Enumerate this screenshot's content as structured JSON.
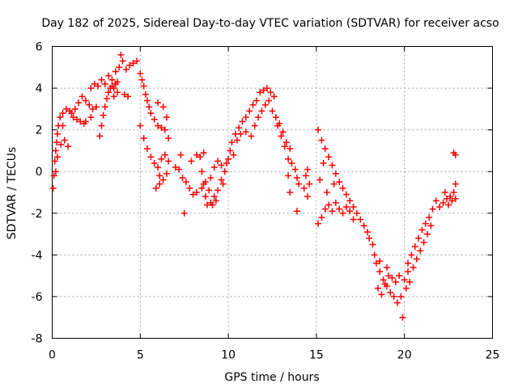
{
  "chart_data": {
    "type": "scatter",
    "title": "Day 182 of 2025, Sidereal Day-to-day VTEC variation (SDTVAR) for receiver acso",
    "xlabel": "GPS time / hours",
    "ylabel": "SDTVAR / TECUs",
    "xlim": [
      0,
      25
    ],
    "ylim": [
      -8,
      6
    ],
    "xticks": [
      0,
      5,
      10,
      15,
      20,
      25
    ],
    "yticks": [
      -8,
      -6,
      -4,
      -2,
      0,
      2,
      4,
      6
    ],
    "xtick_labels": [
      "0",
      "5",
      "10",
      "15",
      "20",
      "25"
    ],
    "ytick_labels": [
      "-8",
      "-6",
      "-4",
      "-2",
      "0",
      "2",
      "4",
      "6"
    ],
    "grid": true,
    "marker": "+",
    "color": "#ff0000",
    "series": [
      {
        "points": [
          [
            0.05,
            -0.8
          ],
          [
            0.1,
            -0.2
          ],
          [
            0.15,
            0.5
          ],
          [
            0.2,
            1.0
          ],
          [
            0.25,
            1.4
          ],
          [
            0.3,
            1.8
          ],
          [
            0.35,
            2.2
          ],
          [
            0.45,
            2.6
          ],
          [
            0.6,
            2.8
          ],
          [
            0.8,
            3.0
          ],
          [
            1.0,
            2.9
          ],
          [
            1.2,
            2.6
          ],
          [
            1.4,
            2.5
          ],
          [
            1.6,
            2.4
          ],
          [
            1.8,
            2.3
          ],
          [
            0.2,
            0.0
          ],
          [
            0.3,
            0.7
          ],
          [
            0.5,
            1.3
          ],
          [
            0.7,
            1.5
          ],
          [
            0.9,
            1.2
          ],
          [
            0.6,
            2.2
          ],
          [
            1.1,
            2.8
          ],
          [
            1.3,
            3.0
          ],
          [
            1.5,
            3.3
          ],
          [
            1.7,
            3.6
          ],
          [
            1.9,
            3.4
          ],
          [
            2.1,
            3.2
          ],
          [
            2.3,
            3.0
          ],
          [
            2.5,
            3.1
          ],
          [
            1.9,
            2.4
          ],
          [
            2.2,
            2.6
          ],
          [
            2.2,
            4.0
          ],
          [
            2.4,
            4.2
          ],
          [
            2.6,
            4.1
          ],
          [
            2.8,
            4.4
          ],
          [
            3.0,
            4.2
          ],
          [
            3.2,
            4.6
          ],
          [
            3.4,
            4.4
          ],
          [
            3.6,
            4.8
          ],
          [
            3.8,
            5.0
          ],
          [
            4.0,
            5.3
          ],
          [
            3.9,
            5.6
          ],
          [
            4.2,
            4.9
          ],
          [
            4.4,
            5.1
          ],
          [
            4.6,
            5.2
          ],
          [
            4.8,
            5.3
          ],
          [
            4.1,
            3.7
          ],
          [
            4.3,
            3.6
          ],
          [
            2.7,
            1.7
          ],
          [
            2.8,
            2.2
          ],
          [
            2.9,
            2.7
          ],
          [
            3.0,
            3.1
          ],
          [
            3.1,
            3.5
          ],
          [
            3.2,
            3.8
          ],
          [
            3.3,
            4.0
          ],
          [
            3.4,
            4.1
          ],
          [
            3.5,
            4.0
          ],
          [
            3.6,
            4.2
          ],
          [
            3.7,
            4.3
          ],
          [
            3.5,
            3.6
          ],
          [
            3.7,
            3.8
          ],
          [
            5.0,
            4.7
          ],
          [
            5.1,
            4.4
          ],
          [
            5.2,
            4.1
          ],
          [
            5.3,
            3.7
          ],
          [
            5.4,
            3.4
          ],
          [
            5.5,
            3.1
          ],
          [
            5.6,
            2.8
          ],
          [
            5.8,
            2.5
          ],
          [
            6.0,
            2.2
          ],
          [
            6.2,
            2.1
          ],
          [
            6.4,
            2.0
          ],
          [
            6.6,
            1.6
          ],
          [
            6.3,
            3.1
          ],
          [
            6.5,
            2.6
          ],
          [
            6.0,
            3.3
          ],
          [
            5.0,
            2.2
          ],
          [
            5.2,
            1.6
          ],
          [
            5.4,
            1.1
          ],
          [
            5.6,
            0.7
          ],
          [
            5.8,
            0.4
          ],
          [
            6.0,
            0.2
          ],
          [
            6.2,
            0.6
          ],
          [
            6.4,
            0.8
          ],
          [
            6.6,
            0.5
          ],
          [
            6.1,
            -0.2
          ],
          [
            6.3,
            -0.4
          ],
          [
            6.5,
            -0.1
          ],
          [
            5.9,
            -0.8
          ],
          [
            6.1,
            -0.6
          ],
          [
            7.0,
            0.2
          ],
          [
            7.2,
            0.1
          ],
          [
            7.4,
            -0.3
          ],
          [
            7.6,
            -0.5
          ],
          [
            7.8,
            -0.8
          ],
          [
            8.0,
            -1.1
          ],
          [
            8.2,
            -1.0
          ],
          [
            7.5,
            -2.0
          ],
          [
            7.3,
            0.8
          ],
          [
            7.9,
            0.5
          ],
          [
            8.2,
            0.8
          ],
          [
            8.4,
            0.7
          ],
          [
            8.5,
            0.0
          ],
          [
            8.6,
            -0.6
          ],
          [
            8.7,
            -1.2
          ],
          [
            8.8,
            -1.6
          ],
          [
            9.0,
            -1.5
          ],
          [
            9.2,
            -1.2
          ],
          [
            9.4,
            -0.9
          ],
          [
            9.6,
            -0.4
          ],
          [
            9.8,
            0.0
          ],
          [
            9.0,
            -0.3
          ],
          [
            9.2,
            0.2
          ],
          [
            9.4,
            0.5
          ],
          [
            9.6,
            0.3
          ],
          [
            8.5,
            -0.8
          ],
          [
            8.7,
            -0.5
          ],
          [
            8.9,
            -0.9
          ],
          [
            9.1,
            -1.6
          ],
          [
            9.3,
            -1.4
          ],
          [
            9.7,
            -0.6
          ],
          [
            9.9,
            0.4
          ],
          [
            8.6,
            0.9
          ],
          [
            10.0,
            0.6
          ],
          [
            10.1,
            1.0
          ],
          [
            10.2,
            1.4
          ],
          [
            10.4,
            1.8
          ],
          [
            10.6,
            2.1
          ],
          [
            10.8,
            2.4
          ],
          [
            11.0,
            2.6
          ],
          [
            11.2,
            2.9
          ],
          [
            11.4,
            3.2
          ],
          [
            11.6,
            3.4
          ],
          [
            11.8,
            3.8
          ],
          [
            12.0,
            3.9
          ],
          [
            12.2,
            4.0
          ],
          [
            12.4,
            3.8
          ],
          [
            12.6,
            3.6
          ],
          [
            10.3,
            0.8
          ],
          [
            10.5,
            1.5
          ],
          [
            10.7,
            1.8
          ],
          [
            11.0,
            1.9
          ],
          [
            11.3,
            1.7
          ],
          [
            11.5,
            2.2
          ],
          [
            11.7,
            2.6
          ],
          [
            11.9,
            2.9
          ],
          [
            12.1,
            3.2
          ],
          [
            12.3,
            3.4
          ],
          [
            12.5,
            2.9
          ],
          [
            12.7,
            2.6
          ],
          [
            12.9,
            2.3
          ],
          [
            13.1,
            1.9
          ],
          [
            13.3,
            1.4
          ],
          [
            13.5,
            1.1
          ],
          [
            12.8,
            2.2
          ],
          [
            13.0,
            1.7
          ],
          [
            13.2,
            1.2
          ],
          [
            13.4,
            0.6
          ],
          [
            13.6,
            0.4
          ],
          [
            13.8,
            0.1
          ],
          [
            13.9,
            -0.3
          ],
          [
            14.0,
            -0.6
          ],
          [
            13.5,
            -1.0
          ],
          [
            13.9,
            -1.9
          ],
          [
            14.3,
            -0.8
          ],
          [
            14.4,
            -0.2
          ],
          [
            14.5,
            0.1
          ],
          [
            14.6,
            -0.6
          ],
          [
            14.5,
            -1.2
          ],
          [
            13.4,
            -0.2
          ],
          [
            15.1,
            2.0
          ],
          [
            15.3,
            1.5
          ],
          [
            15.5,
            1.1
          ],
          [
            15.7,
            0.7
          ],
          [
            15.9,
            0.3
          ],
          [
            16.1,
            -0.1
          ],
          [
            16.3,
            -0.5
          ],
          [
            16.5,
            -0.8
          ],
          [
            16.7,
            -1.1
          ],
          [
            16.9,
            -1.4
          ],
          [
            17.1,
            -1.7
          ],
          [
            17.3,
            -2.0
          ],
          [
            17.5,
            -2.3
          ],
          [
            17.7,
            -2.6
          ],
          [
            17.9,
            -2.9
          ],
          [
            15.1,
            -2.5
          ],
          [
            15.3,
            -2.2
          ],
          [
            15.5,
            -1.8
          ],
          [
            15.7,
            -1.6
          ],
          [
            15.9,
            -1.9
          ],
          [
            16.1,
            -1.5
          ],
          [
            16.3,
            -1.8
          ],
          [
            16.5,
            -2.0
          ],
          [
            16.7,
            -1.7
          ],
          [
            16.9,
            -1.9
          ],
          [
            17.1,
            -2.3
          ],
          [
            15.2,
            -0.4
          ],
          [
            15.4,
            0.4
          ],
          [
            15.6,
            -1.0
          ],
          [
            16.0,
            -0.6
          ],
          [
            18.0,
            -3.2
          ],
          [
            18.2,
            -3.5
          ],
          [
            18.3,
            -4.0
          ],
          [
            18.4,
            -4.4
          ],
          [
            18.6,
            -4.8
          ],
          [
            18.8,
            -5.2
          ],
          [
            19.0,
            -5.5
          ],
          [
            19.2,
            -5.8
          ],
          [
            19.4,
            -6.0
          ],
          [
            19.6,
            -6.3
          ],
          [
            19.8,
            -6.0
          ],
          [
            19.9,
            -7.0
          ],
          [
            20.0,
            -5.2
          ],
          [
            20.2,
            -4.8
          ],
          [
            18.5,
            -5.6
          ],
          [
            18.7,
            -5.9
          ],
          [
            18.9,
            -5.4
          ],
          [
            19.1,
            -5.0
          ],
          [
            19.3,
            -5.1
          ],
          [
            19.5,
            -5.3
          ],
          [
            19.7,
            -5.0
          ],
          [
            20.1,
            -5.6
          ],
          [
            20.3,
            -5.3
          ],
          [
            18.6,
            -4.3
          ],
          [
            19.0,
            -4.6
          ],
          [
            20.2,
            -4.4
          ],
          [
            20.4,
            -4.0
          ],
          [
            20.6,
            -3.6
          ],
          [
            20.8,
            -3.2
          ],
          [
            21.0,
            -2.8
          ],
          [
            21.2,
            -2.5
          ],
          [
            21.4,
            -2.2
          ],
          [
            21.6,
            -1.8
          ],
          [
            21.8,
            -1.4
          ],
          [
            20.5,
            -4.6
          ],
          [
            20.7,
            -4.2
          ],
          [
            20.9,
            -3.8
          ],
          [
            21.1,
            -3.4
          ],
          [
            21.3,
            -3.0
          ],
          [
            21.5,
            -2.6
          ],
          [
            22.0,
            -1.7
          ],
          [
            22.2,
            -1.5
          ],
          [
            22.4,
            -1.3
          ],
          [
            22.6,
            -1.2
          ],
          [
            22.8,
            -1.0
          ],
          [
            22.9,
            -0.6
          ],
          [
            22.3,
            -1.0
          ],
          [
            22.5,
            -1.6
          ],
          [
            22.7,
            -1.4
          ],
          [
            22.9,
            -1.3
          ],
          [
            22.8,
            0.9
          ],
          [
            22.9,
            0.8
          ]
        ]
      }
    ]
  }
}
